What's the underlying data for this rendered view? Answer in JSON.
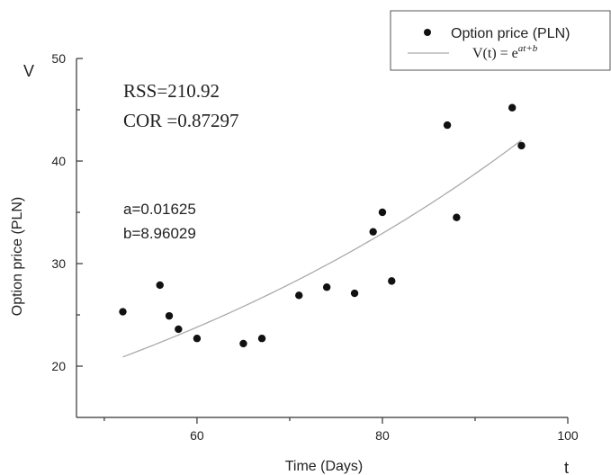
{
  "chart_data": {
    "type": "scatter",
    "title": "",
    "xlabel": "Time (Days)",
    "ylabel": "Option price (PLN)",
    "x_axis_symbol": "t",
    "y_axis_symbol": "V",
    "xlim": [
      47,
      100
    ],
    "ylim": [
      15,
      50
    ],
    "x_ticks": [
      60,
      80,
      100
    ],
    "y_ticks": [
      20,
      30,
      40,
      50
    ],
    "grid": false,
    "legend_position": "top-right",
    "series": [
      {
        "name": "Option price (PLN)",
        "kind": "scatter",
        "color": "#111111",
        "points": [
          {
            "x": 52,
            "y": 25.3
          },
          {
            "x": 56,
            "y": 27.9
          },
          {
            "x": 57,
            "y": 24.9
          },
          {
            "x": 58,
            "y": 23.6
          },
          {
            "x": 60,
            "y": 22.7
          },
          {
            "x": 65,
            "y": 22.2
          },
          {
            "x": 67,
            "y": 22.7
          },
          {
            "x": 71,
            "y": 26.9
          },
          {
            "x": 74,
            "y": 27.7
          },
          {
            "x": 77,
            "y": 27.1
          },
          {
            "x": 79,
            "y": 33.1
          },
          {
            "x": 80,
            "y": 35.0
          },
          {
            "x": 81,
            "y": 28.3
          },
          {
            "x": 87,
            "y": 43.5
          },
          {
            "x": 88,
            "y": 34.5
          },
          {
            "x": 94,
            "y": 45.2
          },
          {
            "x": 95,
            "y": 41.5
          }
        ]
      },
      {
        "name": "V(t) = e^{at+b}",
        "kind": "line",
        "color": "#aaaaaa",
        "x_range": [
          52,
          95
        ]
      }
    ],
    "annotations": {
      "rss": "RSS=210.92",
      "cor": "COR =0.87297",
      "a": "a=0.01625",
      "b": "b=8.96029"
    },
    "legend": {
      "scatter_label": "Option price (PLN)",
      "fit_label_prefix": "V(t) = e",
      "fit_label_exponent": "at+b"
    }
  }
}
